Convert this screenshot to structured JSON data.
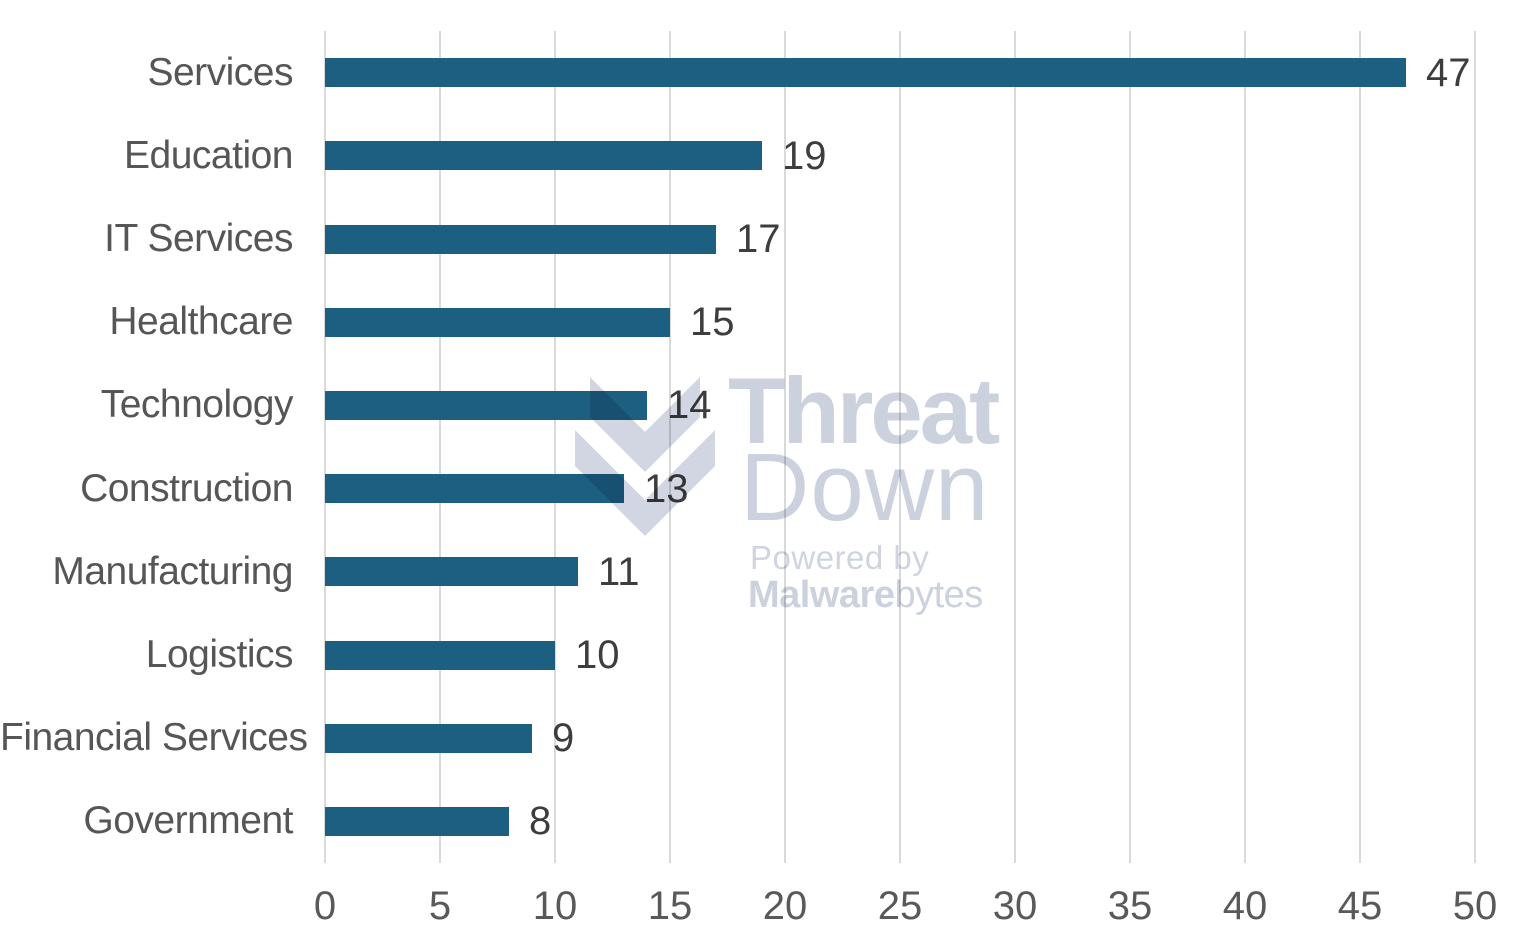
{
  "chart_data": {
    "type": "bar",
    "orientation": "horizontal",
    "title": "",
    "xlabel": "",
    "ylabel": "",
    "categories": [
      "Services",
      "Education",
      "IT Services",
      "Healthcare",
      "Technology",
      "Construction",
      "Manufacturing",
      "Logistics",
      "Financial Services",
      "Government"
    ],
    "values": [
      47,
      19,
      17,
      15,
      14,
      13,
      11,
      10,
      9,
      8
    ],
    "data_labels": [
      "47",
      "19",
      "17",
      "15",
      "14",
      "13",
      "11",
      "10",
      "9",
      "8"
    ],
    "xlim": [
      0,
      50
    ],
    "xticks": [
      0,
      5,
      10,
      15,
      20,
      25,
      30,
      35,
      40,
      45,
      50
    ],
    "xtick_labels": [
      "0",
      "5",
      "10",
      "15",
      "20",
      "25",
      "30",
      "35",
      "40",
      "45",
      "50"
    ],
    "grid": "vertical-gridlines-on",
    "legend": "none",
    "colors": {
      "bar": "#1c5f80",
      "gridline": "#d9d9d9",
      "category_label": "#565656",
      "value_label": "#3d3d3d",
      "tick_label": "#595959",
      "background": "#ffffff",
      "watermark": "#d2d6e2"
    }
  },
  "watermark": {
    "line1": "Threat",
    "line2": "Down",
    "powered_by": "Powered by",
    "brand_strong": "Malware",
    "brand_light": "bytes"
  }
}
